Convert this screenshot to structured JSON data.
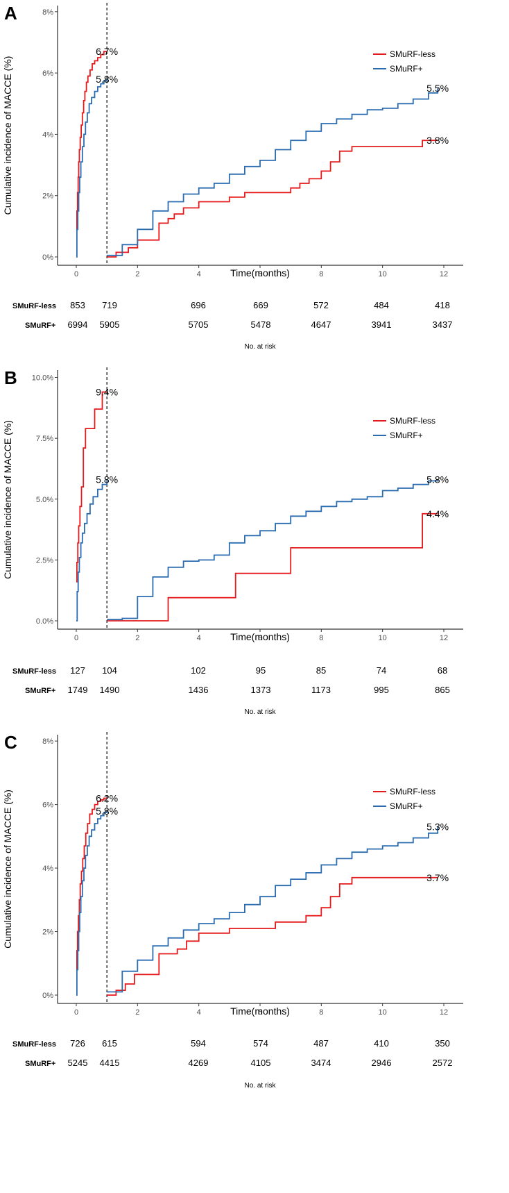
{
  "colors": {
    "smurf_less": "#e41a1c",
    "smurf_plus": "#2b6cb0",
    "axis": "#000000",
    "tick_text": "#4d4d4d"
  },
  "chart_data": [
    {
      "type": "line",
      "panel_label": "A",
      "ylabel": "Cumulative incidence of MACCE (%)",
      "xlabel": "Time(months)",
      "xlim": [
        0,
        12.4
      ],
      "ylim": [
        0,
        8.2
      ],
      "xticks": [
        0,
        2,
        4,
        6,
        8,
        10,
        12
      ],
      "yticks": [
        0,
        2,
        4,
        6,
        8
      ],
      "ytick_labels": [
        "0%",
        "2%",
        "4%",
        "6%",
        "8%"
      ],
      "landmark_month": 1,
      "legend": [
        "SMuRF-less",
        "SMuRF+"
      ],
      "series": [
        {
          "name": "SMuRF-less",
          "color_key": "smurf_less",
          "segments": [
            {
              "x": [
                0,
                0.02,
                0.04,
                0.06,
                0.08,
                0.1,
                0.13,
                0.16,
                0.2,
                0.24,
                0.28,
                0.33,
                0.38,
                0.45,
                0.52,
                0.6,
                0.7,
                0.8,
                0.9,
                1.0
              ],
              "y": [
                0.9,
                1.5,
                2.1,
                2.6,
                3.1,
                3.5,
                3.9,
                4.3,
                4.7,
                5.1,
                5.4,
                5.7,
                5.9,
                6.1,
                6.3,
                6.4,
                6.5,
                6.6,
                6.7,
                6.7
              ]
            },
            {
              "x": [
                1.0,
                1.3,
                1.7,
                2.0,
                2.6,
                2.7,
                3.0,
                3.2,
                3.5,
                4.0,
                4.5,
                5.0,
                5.5,
                6.0,
                6.5,
                7.0,
                7.3,
                7.6,
                8.0,
                8.3,
                8.6,
                9.0,
                10.0,
                11.3,
                11.8
              ],
              "y": [
                0.0,
                0.15,
                0.3,
                0.55,
                0.55,
                1.1,
                1.25,
                1.4,
                1.6,
                1.8,
                1.8,
                1.95,
                2.1,
                2.1,
                2.1,
                2.25,
                2.4,
                2.55,
                2.8,
                3.1,
                3.45,
                3.6,
                3.6,
                3.8,
                3.8
              ]
            }
          ]
        },
        {
          "name": "SMuRF+",
          "color_key": "smurf_plus",
          "segments": [
            {
              "x": [
                0,
                0.02,
                0.05,
                0.08,
                0.11,
                0.15,
                0.2,
                0.25,
                0.3,
                0.36,
                0.42,
                0.5,
                0.6,
                0.7,
                0.8,
                0.9,
                1.0
              ],
              "y": [
                0.0,
                0.9,
                1.5,
                2.1,
                2.6,
                3.1,
                3.6,
                4.0,
                4.4,
                4.7,
                5.0,
                5.2,
                5.4,
                5.55,
                5.65,
                5.75,
                5.8
              ]
            },
            {
              "x": [
                1.0,
                1.5,
                2.0,
                2.5,
                3.0,
                3.5,
                4.0,
                4.5,
                5.0,
                5.5,
                6.0,
                6.5,
                7.0,
                7.5,
                8.0,
                8.5,
                9.0,
                9.5,
                10.0,
                10.5,
                11.0,
                11.5,
                11.8
              ],
              "y": [
                0.05,
                0.4,
                0.9,
                1.5,
                1.8,
                2.05,
                2.25,
                2.4,
                2.7,
                2.95,
                3.15,
                3.5,
                3.8,
                4.1,
                4.35,
                4.5,
                4.65,
                4.8,
                4.85,
                5.0,
                5.15,
                5.35,
                5.5
              ]
            }
          ]
        }
      ],
      "end_labels": [
        {
          "series": "SMuRF-less",
          "text": "6.7%",
          "x": 1.0,
          "y": 6.7
        },
        {
          "series": "SMuRF+",
          "text": "5.8%",
          "x": 1.0,
          "y": 5.8
        },
        {
          "series": "SMuRF+",
          "text": "5.5%",
          "x": 11.8,
          "y": 5.5
        },
        {
          "series": "SMuRF-less",
          "text": "3.8%",
          "x": 11.8,
          "y": 3.8
        }
      ],
      "risk_table": {
        "title": "No. at risk",
        "times": [
          0,
          1,
          4,
          6,
          8,
          10,
          12
        ],
        "rows": [
          {
            "label": "SMuRF-less",
            "values": [
              "853",
              "719",
              "696",
              "669",
              "572",
              "484",
              "418"
            ]
          },
          {
            "label": "SMuRF+",
            "values": [
              "6994",
              "5905",
              "5705",
              "5478",
              "4647",
              "3941",
              "3437"
            ]
          }
        ]
      }
    },
    {
      "type": "line",
      "panel_label": "B",
      "ylabel": "Cumulative incidence of MACCE (%)",
      "xlabel": "Time(months)",
      "xlim": [
        0,
        12.4
      ],
      "ylim": [
        0,
        10.3
      ],
      "xticks": [
        0,
        2,
        4,
        6,
        8,
        10,
        12
      ],
      "yticks": [
        0,
        2.5,
        5,
        7.5,
        10
      ],
      "ytick_labels": [
        "0.0%",
        "2.5%",
        "5.0%",
        "7.5%",
        "10.0%"
      ],
      "landmark_month": 1,
      "legend": [
        "SMuRF-less",
        "SMuRF+"
      ],
      "series": [
        {
          "name": "SMuRF-less",
          "color_key": "smurf_less",
          "segments": [
            {
              "x": [
                0,
                0.02,
                0.05,
                0.08,
                0.12,
                0.17,
                0.23,
                0.3,
                0.45,
                0.6,
                0.85,
                1.0
              ],
              "y": [
                1.6,
                2.4,
                3.2,
                3.9,
                4.7,
                5.5,
                7.1,
                7.9,
                7.9,
                8.7,
                9.4,
                9.4
              ]
            },
            {
              "x": [
                1.0,
                3.0,
                5.2,
                7.0,
                8.0,
                11.3,
                11.8
              ],
              "y": [
                0.0,
                0.95,
                1.95,
                3.0,
                3.0,
                4.4,
                4.4
              ]
            }
          ]
        },
        {
          "name": "SMuRF+",
          "color_key": "smurf_plus",
          "segments": [
            {
              "x": [
                0,
                0.03,
                0.06,
                0.1,
                0.15,
                0.2,
                0.27,
                0.35,
                0.45,
                0.55,
                0.7,
                0.85,
                1.0
              ],
              "y": [
                0.0,
                1.2,
                2.0,
                2.6,
                3.2,
                3.6,
                4.0,
                4.4,
                4.8,
                5.1,
                5.4,
                5.6,
                5.8
              ]
            },
            {
              "x": [
                1.0,
                1.5,
                2.0,
                2.5,
                3.0,
                3.5,
                4.0,
                4.5,
                5.0,
                5.5,
                6.0,
                6.5,
                7.0,
                7.5,
                8.0,
                8.5,
                9.0,
                9.5,
                10.0,
                10.5,
                11.0,
                11.5,
                11.8
              ],
              "y": [
                0.05,
                0.1,
                1.0,
                1.8,
                2.2,
                2.45,
                2.5,
                2.7,
                3.2,
                3.5,
                3.7,
                4.0,
                4.3,
                4.5,
                4.7,
                4.9,
                5.0,
                5.1,
                5.35,
                5.45,
                5.6,
                5.75,
                5.8
              ]
            }
          ]
        }
      ],
      "end_labels": [
        {
          "series": "SMuRF-less",
          "text": "9.4%",
          "x": 1.0,
          "y": 9.4
        },
        {
          "series": "SMuRF+",
          "text": "5.8%",
          "x": 1.0,
          "y": 5.8
        },
        {
          "series": "SMuRF+",
          "text": "5.8%",
          "x": 11.8,
          "y": 5.8
        },
        {
          "series": "SMuRF-less",
          "text": "4.4%",
          "x": 11.8,
          "y": 4.4
        }
      ],
      "risk_table": {
        "title": "No. at risk",
        "times": [
          0,
          1,
          4,
          6,
          8,
          10,
          12
        ],
        "rows": [
          {
            "label": "SMuRF-less",
            "values": [
              "127",
              "104",
              "102",
              "95",
              "85",
              "74",
              "68"
            ]
          },
          {
            "label": "SMuRF+",
            "values": [
              "1749",
              "1490",
              "1436",
              "1373",
              "1173",
              "995",
              "865"
            ]
          }
        ]
      }
    },
    {
      "type": "line",
      "panel_label": "C",
      "ylabel": "Cumulative incidence of MACCE (%)",
      "xlabel": "Time(months)",
      "xlim": [
        0,
        12.4
      ],
      "ylim": [
        0,
        8.2
      ],
      "xticks": [
        0,
        2,
        4,
        6,
        8,
        10,
        12
      ],
      "yticks": [
        0,
        2,
        4,
        6,
        8
      ],
      "ytick_labels": [
        "0%",
        "2%",
        "4%",
        "6%",
        "8%"
      ],
      "landmark_month": 1,
      "legend": [
        "SMuRF-less",
        "SMuRF+"
      ],
      "series": [
        {
          "name": "SMuRF-less",
          "color_key": "smurf_less",
          "segments": [
            {
              "x": [
                0,
                0.02,
                0.04,
                0.07,
                0.1,
                0.13,
                0.17,
                0.21,
                0.26,
                0.31,
                0.37,
                0.44,
                0.52,
                0.6,
                0.7,
                0.8,
                0.9,
                1.0
              ],
              "y": [
                0.8,
                1.4,
                2.0,
                2.5,
                3.0,
                3.5,
                3.9,
                4.3,
                4.7,
                5.1,
                5.4,
                5.7,
                5.85,
                6.0,
                6.1,
                6.15,
                6.2,
                6.2
              ]
            },
            {
              "x": [
                1.0,
                1.3,
                1.6,
                1.9,
                2.6,
                2.7,
                3.0,
                3.3,
                3.6,
                4.0,
                4.5,
                5.0,
                5.5,
                6.0,
                6.5,
                7.0,
                7.5,
                8.0,
                8.3,
                8.6,
                9.0,
                10.0,
                11.0,
                11.8
              ],
              "y": [
                0.0,
                0.15,
                0.35,
                0.65,
                0.65,
                1.3,
                1.3,
                1.45,
                1.7,
                1.95,
                1.95,
                2.1,
                2.1,
                2.1,
                2.3,
                2.3,
                2.5,
                2.75,
                3.1,
                3.5,
                3.7,
                3.7,
                3.7,
                3.7
              ]
            }
          ]
        },
        {
          "name": "SMuRF+",
          "color_key": "smurf_plus",
          "segments": [
            {
              "x": [
                0,
                0.02,
                0.05,
                0.08,
                0.11,
                0.15,
                0.2,
                0.25,
                0.3,
                0.36,
                0.42,
                0.5,
                0.6,
                0.7,
                0.8,
                0.9,
                1.0
              ],
              "y": [
                0.0,
                0.8,
                1.4,
                2.0,
                2.6,
                3.1,
                3.6,
                4.0,
                4.4,
                4.7,
                5.0,
                5.2,
                5.4,
                5.55,
                5.65,
                5.75,
                5.8
              ]
            },
            {
              "x": [
                1.0,
                1.5,
                2.0,
                2.5,
                3.0,
                3.5,
                4.0,
                4.5,
                5.0,
                5.5,
                6.0,
                6.5,
                7.0,
                7.5,
                8.0,
                8.5,
                9.0,
                9.5,
                10.0,
                10.5,
                11.0,
                11.5,
                11.8
              ],
              "y": [
                0.1,
                0.75,
                1.1,
                1.55,
                1.8,
                2.05,
                2.25,
                2.4,
                2.6,
                2.85,
                3.1,
                3.45,
                3.65,
                3.85,
                4.1,
                4.3,
                4.5,
                4.6,
                4.7,
                4.8,
                4.95,
                5.1,
                5.3
              ]
            }
          ]
        }
      ],
      "end_labels": [
        {
          "series": "SMuRF-less",
          "text": "6.2%",
          "x": 1.0,
          "y": 6.2
        },
        {
          "series": "SMuRF+",
          "text": "5.8%",
          "x": 1.0,
          "y": 5.8
        },
        {
          "series": "SMuRF+",
          "text": "5.3%",
          "x": 11.8,
          "y": 5.3
        },
        {
          "series": "SMuRF-less",
          "text": "3.7%",
          "x": 11.8,
          "y": 3.7
        }
      ],
      "risk_table": {
        "title": "No. at risk",
        "times": [
          0,
          1,
          4,
          6,
          8,
          10,
          12
        ],
        "rows": [
          {
            "label": "SMuRF-less",
            "values": [
              "726",
              "615",
              "594",
              "574",
              "487",
              "410",
              "350"
            ]
          },
          {
            "label": "SMuRF+",
            "values": [
              "5245",
              "4415",
              "4269",
              "4105",
              "3474",
              "2946",
              "2572"
            ]
          }
        ]
      }
    }
  ]
}
